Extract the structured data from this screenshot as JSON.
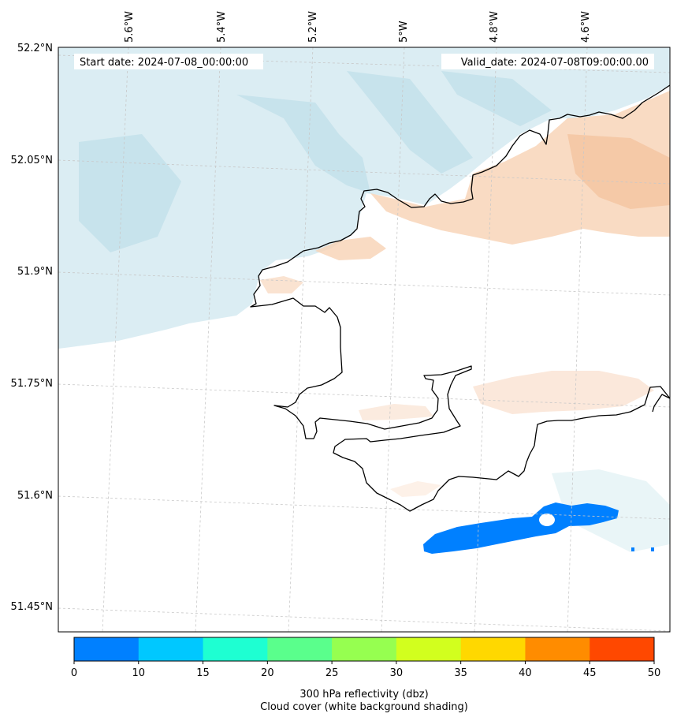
{
  "map": {
    "start_date_label": "Start date: 2024-07-08_00:00:00",
    "valid_date_label": "Valid_date: 2024-07-08T09:00:00.00",
    "lon_labels": [
      "5.6°W",
      "5.4°W",
      "5.2°W",
      "5°W",
      "4.8°W",
      "4.6°W"
    ],
    "lat_labels": [
      "52.2°N",
      "52.05°N",
      "51.9°N",
      "51.75°N",
      "51.6°N",
      "51.45°N"
    ]
  },
  "colorbar": {
    "ticks": [
      "0",
      "10",
      "15",
      "20",
      "25",
      "30",
      "35",
      "40",
      "45",
      "50"
    ],
    "colors": [
      "#0080ff",
      "#00c8ff",
      "#1effd2",
      "#5aff8c",
      "#96ff50",
      "#d2ff1e",
      "#ffd800",
      "#ff8c00",
      "#ff4800"
    ],
    "title_line1": "300 hPa reflectivity (dbz)",
    "title_line2": "Cloud cover (white background shading)"
  },
  "colors": {
    "cloud": "#bfe1ea",
    "warm": "#f5c7a3",
    "echo": "#0080ff",
    "coast": "#000000",
    "grid": "#c8c8c8"
  }
}
